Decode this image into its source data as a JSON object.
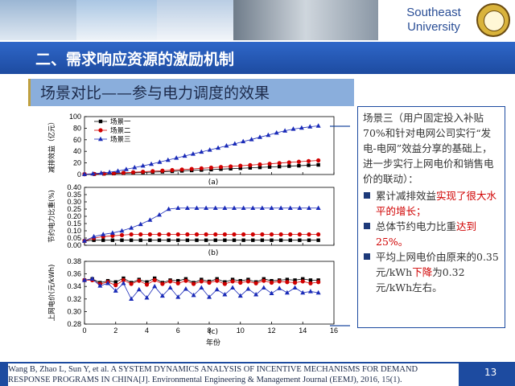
{
  "header": {
    "university_line1": "Southeast",
    "university_line2": "University"
  },
  "section_title": "二、需求响应资源的激励机制",
  "subtitle": "场景对比——参与电力调度的效果",
  "textbox": {
    "intro": "场景三（用户固定投入补贴70%和针对电网公司实行“发电-电网”效益分享的基础上，进一步实行上网电价和销售电价的联动）：",
    "item1_a": "累计减排效益",
    "item1_b": "实现了很大水平的增长；",
    "item2_a": "总体节约电力比重",
    "item2_b": "达到25%。",
    "item3_a": "平均上网电价由原来的0.35元/kWh",
    "item3_b": "下降",
    "item3_c": "为0.32元/kWh左右。"
  },
  "citation": "Wang B, Zhao L, Sun Y, et al. A SYSTEM DYNAMICS ANALYSIS OF INCENTIVE MECHANISMS FOR DEMAND RESPONSE PROGRAMS IN CHINA[J]. Environmental Engineering & Management Journal (EEMJ), 2016, 15(1).",
  "page_number": "13",
  "chart_data": [
    {
      "type": "line",
      "panel_label": "(a)",
      "ylabel": "减排效益（亿元）",
      "ylim": [
        0,
        100
      ],
      "yticks": [
        "0",
        "20",
        "40",
        "60",
        "80",
        "100"
      ],
      "series": [
        {
          "name": "场景一",
          "marker": "square",
          "color": "#000000",
          "values": [
            0.3,
            0.7,
            1.2,
            1.6,
            2.1,
            2.8,
            3.5,
            4.2,
            4.8,
            5.5,
            6.3,
            7,
            7.8,
            8.5,
            9.3,
            10,
            10.8,
            11.5,
            12.3,
            13,
            13.7,
            14.5,
            15.2,
            16,
            16.6
          ]
        },
        {
          "name": "场景二",
          "marker": "circle",
          "color": "#d00000",
          "values": [
            0.5,
            0.9,
            1.5,
            2.2,
            3,
            3.9,
            4.8,
            5.7,
            6.6,
            7.6,
            8.6,
            9.6,
            10.7,
            11.8,
            12.9,
            14,
            15.1,
            16.2,
            17.4,
            18.5,
            19.7,
            20.9,
            22,
            23.2,
            24.3
          ]
        },
        {
          "name": "场景三",
          "marker": "triangle",
          "color": "#1a2bb8",
          "values": [
            0.5,
            1.3,
            2.5,
            4,
            6,
            9,
            12,
            15,
            18,
            21.5,
            25,
            28.5,
            32,
            35.5,
            39,
            42.5,
            46,
            49.5,
            53,
            57,
            60.5,
            64.5,
            68,
            72,
            75.5,
            78.5,
            80.5,
            82.5,
            84
          ]
        }
      ]
    },
    {
      "type": "line",
      "panel_label": "(b)",
      "ylabel": "节约电力比重(%)",
      "ylim": [
        0,
        0.4
      ],
      "yticks": [
        "0.00",
        "0.05",
        "0.10",
        "0.15",
        "0.20",
        "0.25",
        "0.30",
        "0.35",
        "0.40"
      ],
      "series": [
        {
          "name": "场景一",
          "values": [
            0.03,
            0.035,
            0.035,
            0.035,
            0.035,
            0.035,
            0.035,
            0.035,
            0.035,
            0.035,
            0.035,
            0.035,
            0.035,
            0.035,
            0.035,
            0.035,
            0.035,
            0.035,
            0.035,
            0.035,
            0.035,
            0.035,
            0.035,
            0.035,
            0.035,
            0.035
          ]
        },
        {
          "name": "场景二",
          "values": [
            0.03,
            0.05,
            0.06,
            0.065,
            0.07,
            0.075,
            0.075,
            0.075,
            0.075,
            0.075,
            0.075,
            0.075,
            0.075,
            0.075,
            0.075,
            0.075,
            0.075,
            0.075,
            0.075,
            0.075,
            0.075,
            0.075,
            0.075,
            0.075,
            0.075,
            0.075
          ]
        },
        {
          "name": "场景三",
          "values": [
            0.03,
            0.06,
            0.075,
            0.085,
            0.1,
            0.12,
            0.145,
            0.175,
            0.21,
            0.25,
            0.257,
            0.257,
            0.257,
            0.257,
            0.257,
            0.257,
            0.257,
            0.257,
            0.257,
            0.257,
            0.257,
            0.257,
            0.257,
            0.257,
            0.257,
            0.257
          ]
        }
      ]
    },
    {
      "type": "line",
      "panel_label": "(c)",
      "ylabel": "上网电价(元/kWh)",
      "xlabel": "年份",
      "ylim": [
        0.28,
        0.38
      ],
      "yticks": [
        "0.28",
        "0.30",
        "0.32",
        "0.34",
        "0.36",
        "0.38"
      ],
      "xlim": [
        0,
        16
      ],
      "xticks": [
        "0",
        "2",
        "4",
        "6",
        "8",
        "10",
        "12",
        "14",
        "16"
      ],
      "series": [
        {
          "name": "场景一",
          "values": [
            0.35,
            0.352,
            0.346,
            0.349,
            0.347,
            0.353,
            0.346,
            0.351,
            0.347,
            0.353,
            0.346,
            0.35,
            0.349,
            0.352,
            0.346,
            0.351,
            0.348,
            0.352,
            0.347,
            0.351,
            0.349,
            0.351,
            0.347,
            0.352,
            0.349,
            0.35,
            0.351,
            0.35,
            0.352,
            0.35,
            0.35
          ]
        },
        {
          "name": "场景二",
          "values": [
            0.35,
            0.35,
            0.344,
            0.347,
            0.342,
            0.35,
            0.344,
            0.349,
            0.343,
            0.35,
            0.344,
            0.348,
            0.345,
            0.349,
            0.344,
            0.348,
            0.346,
            0.349,
            0.344,
            0.348,
            0.346,
            0.348,
            0.345,
            0.349,
            0.346,
            0.348,
            0.347,
            0.346,
            0.348,
            0.345,
            0.347
          ]
        },
        {
          "name": "场景三",
          "values": [
            0.35,
            0.352,
            0.341,
            0.345,
            0.333,
            0.345,
            0.32,
            0.335,
            0.322,
            0.34,
            0.325,
            0.338,
            0.323,
            0.336,
            0.326,
            0.338,
            0.323,
            0.335,
            0.327,
            0.338,
            0.325,
            0.336,
            0.327,
            0.338,
            0.329,
            0.337,
            0.33,
            0.338,
            0.33,
            0.332,
            0.33
          ]
        }
      ]
    }
  ]
}
